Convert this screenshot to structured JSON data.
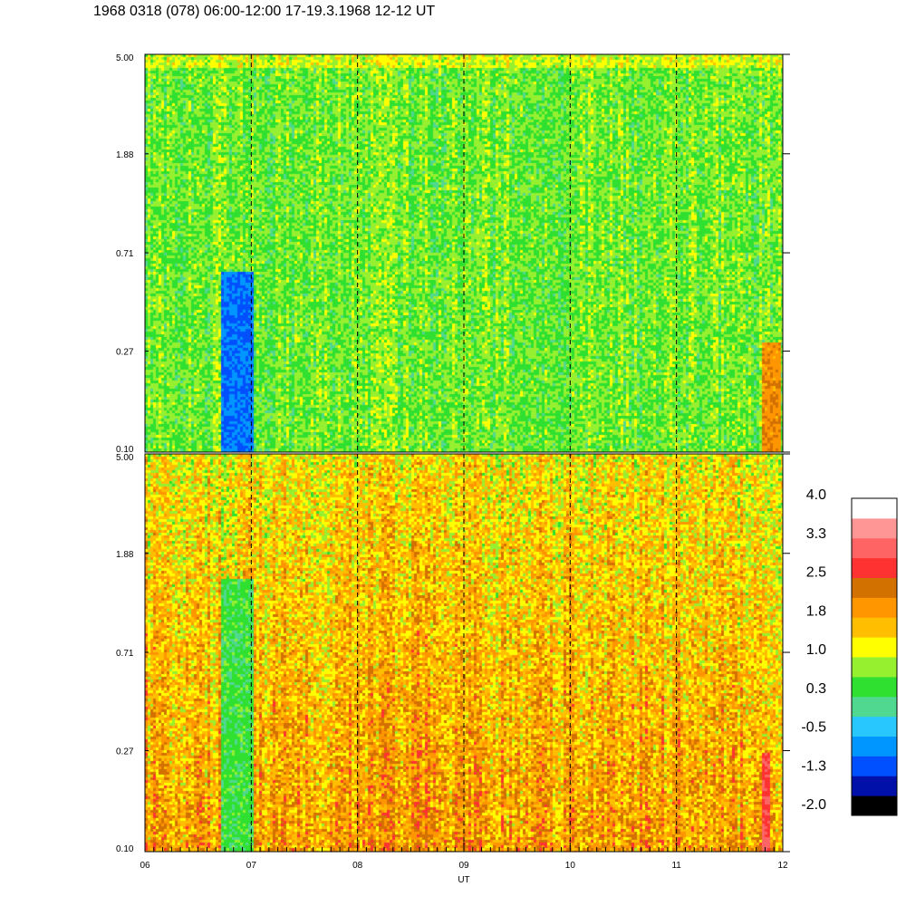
{
  "title": "1968 0318 (078) 06:00-12:00 17-19.3.1968  12-12 UT",
  "chart_data": {
    "type": "heatmap",
    "xlabel": "UT",
    "x_ticks": [
      "06",
      "07",
      "08",
      "09",
      "10",
      "11",
      "12"
    ],
    "x_range": [
      6,
      12
    ],
    "y_scale": "log",
    "y_range": [
      0.1,
      5.0
    ],
    "y_ticks": [
      "0.10",
      "0.27",
      "0.71",
      "1.88",
      "5.00"
    ],
    "y_tick_values": [
      0.1,
      0.27,
      0.71,
      1.88,
      5.0
    ],
    "hour_markers": [
      7,
      8,
      9,
      10,
      11
    ],
    "panels": [
      {
        "name": "upper",
        "dominant_level_range": [
          0.3,
          1.0
        ],
        "features": [
          {
            "x_range": [
              6.71,
              7.02
            ],
            "y_range": [
              0.1,
              0.6
            ],
            "level": -0.9
          },
          {
            "x_range": [
              11.8,
              11.98
            ],
            "y_range": [
              0.1,
              0.3
            ],
            "level": 2.0
          }
        ]
      },
      {
        "name": "lower",
        "dominant_level_range": [
          1.0,
          2.2
        ],
        "features": [
          {
            "x_range": [
              6.71,
              7.02
            ],
            "y_range": [
              0.1,
              1.5
            ],
            "level": 0.4
          },
          {
            "x_range": [
              11.8,
              11.88
            ],
            "y_range": [
              0.1,
              0.27
            ],
            "level": 2.8
          }
        ]
      }
    ],
    "colorbar": {
      "tick_labels": [
        "4.0",
        "3.3",
        "2.5",
        "1.8",
        "1.0",
        "0.3",
        "-0.5",
        "-1.3",
        "-2.0"
      ],
      "range": [
        -2.0,
        4.0
      ],
      "colors": [
        "#000000",
        "#0010a8",
        "#0050ff",
        "#0096ff",
        "#28c8ff",
        "#50d890",
        "#30e030",
        "#96f030",
        "#ffff00",
        "#ffbe00",
        "#ff9600",
        "#d27000",
        "#ff3232",
        "#ff6464",
        "#ff9696",
        "#ffffff"
      ]
    }
  }
}
